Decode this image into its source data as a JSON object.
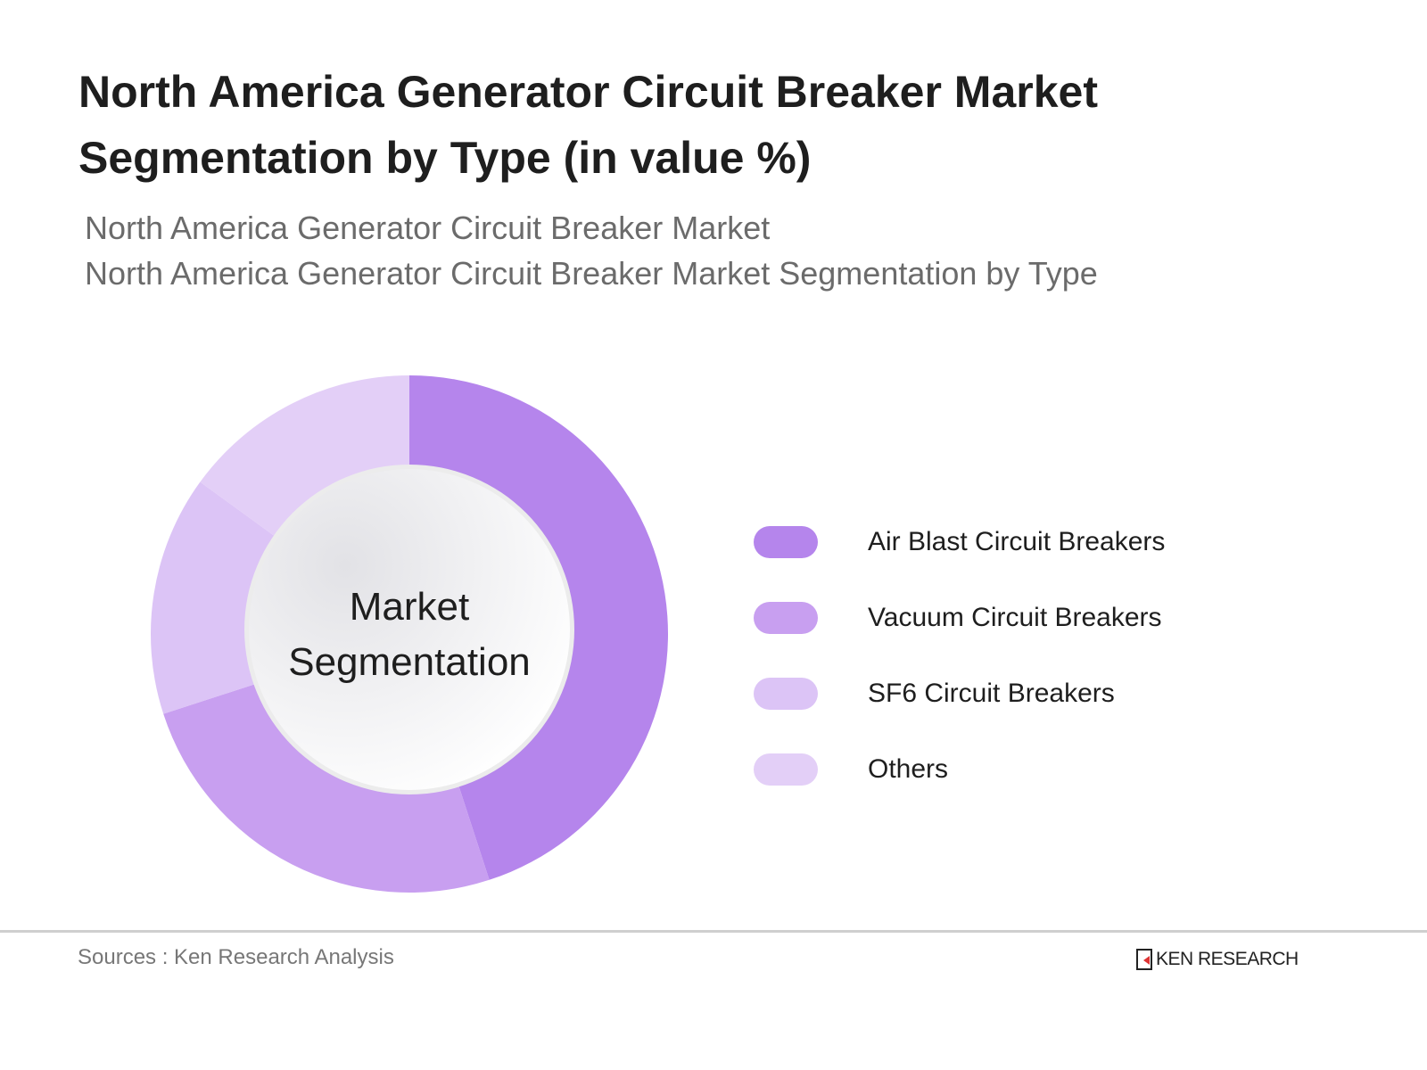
{
  "header": {
    "title": "North America Generator Circuit Breaker Market Segmentation by Type (in value %)",
    "subtitle_lines": [
      "North America Generator Circuit Breaker Market",
      "North America Generator Circuit Breaker Market Segmentation by Type"
    ]
  },
  "chart_data": {
    "type": "pie",
    "variant": "donut",
    "title": "North America Generator Circuit Breaker Market Segmentation by Type (in value %)",
    "center_label_lines": [
      "Market",
      "Segmentation"
    ],
    "categories": [
      "Air Blast Circuit Breakers",
      "Vacuum Circuit Breakers",
      "SF6 Circuit Breakers",
      "Others"
    ],
    "values": [
      45,
      25,
      15,
      15
    ],
    "colors": [
      "#b585ec",
      "#c89ff0",
      "#dcc4f6",
      "#e3cff7"
    ],
    "legend_position": "right"
  },
  "footer": {
    "source": "Sources : Ken Research Analysis",
    "logo_text": "KEN RESEARCH"
  }
}
